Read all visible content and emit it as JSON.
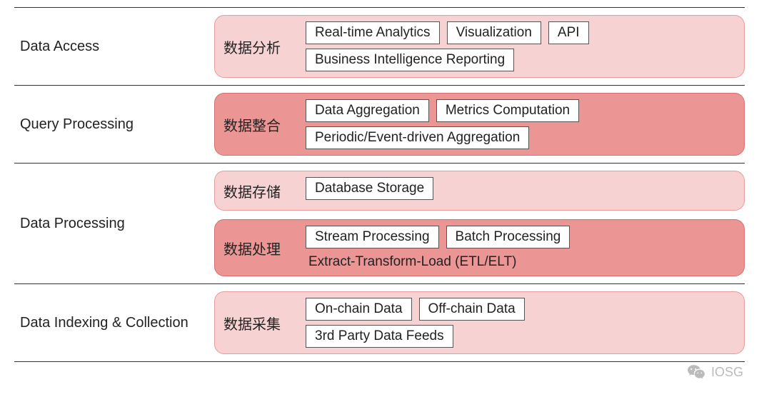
{
  "diagram": {
    "type": "infographic",
    "background_color": "#ffffff",
    "divider_color": "#333333",
    "text_color": "#222222",
    "label_fontsize": 20,
    "tag_fontsize": 19,
    "block_border_radius": 14,
    "palette": {
      "light_bg": "#f7d2d2",
      "light_border": "#e99a9a",
      "dark_bg": "#eb9595",
      "dark_border": "#d66f6f",
      "tag_bg": "#ffffff",
      "tag_border": "#555555"
    },
    "rows": [
      {
        "label": "Data Access",
        "blocks": [
          {
            "tone": "light",
            "cn_label": "数据分析",
            "tag_rows": [
              [
                "Real-time Analytics",
                "Visualization",
                "API"
              ],
              [
                "Business Intelligence Reporting"
              ]
            ]
          }
        ]
      },
      {
        "label": "Query Processing",
        "blocks": [
          {
            "tone": "dark",
            "cn_label": "数据整合",
            "tag_rows": [
              [
                "Data Aggregation",
                "Metrics Computation"
              ],
              [
                "Periodic/Event-driven Aggregation"
              ]
            ]
          }
        ]
      },
      {
        "label": "Data Processing",
        "blocks": [
          {
            "tone": "light",
            "cn_label": "数据存储",
            "tag_rows": [
              [
                "Database Storage"
              ]
            ]
          },
          {
            "tone": "dark",
            "cn_label": "数据处理",
            "tag_rows": [
              [
                "Stream Processing",
                "Batch Processing"
              ]
            ],
            "subtext": "Extract-Transform-Load (ETL/ELT)"
          }
        ]
      },
      {
        "label": "Data Indexing & Collection",
        "blocks": [
          {
            "tone": "light",
            "cn_label": "数据采集",
            "tag_rows": [
              [
                "On-chain Data",
                "Off-chain Data"
              ],
              [
                "3rd Party Data Feeds"
              ]
            ]
          }
        ]
      }
    ]
  },
  "watermark": {
    "text": "IOSG",
    "color": "#bbbbbb",
    "icon": "wechat-icon"
  }
}
